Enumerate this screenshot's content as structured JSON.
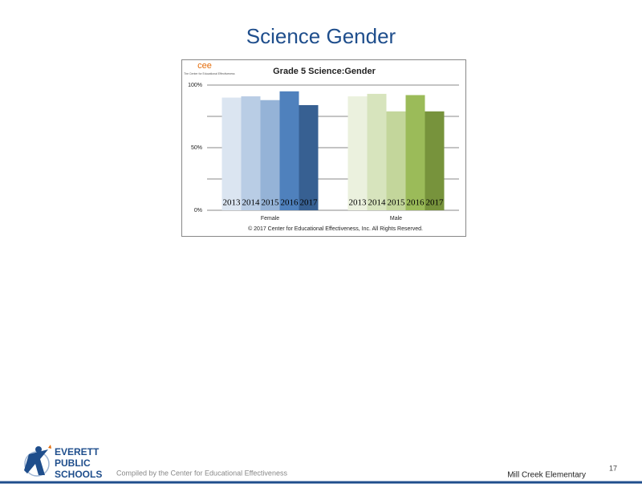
{
  "slide_title": "Science Gender",
  "chart_data": {
    "type": "bar",
    "title": "Grade 5 Science:Gender",
    "categories": [
      "Female",
      "Male"
    ],
    "series": [
      {
        "name": "2013",
        "colors": [
          "#dbe5f1",
          "#ebf1de"
        ],
        "values": [
          90,
          91
        ]
      },
      {
        "name": "2014",
        "colors": [
          "#b9cde5",
          "#d7e4bd"
        ],
        "values": [
          91,
          93
        ]
      },
      {
        "name": "2015",
        "colors": [
          "#95b3d7",
          "#c3d69b"
        ],
        "values": [
          88,
          79
        ]
      },
      {
        "name": "2016",
        "colors": [
          "#4f81bd",
          "#9bbb59"
        ],
        "values": [
          95,
          92
        ]
      },
      {
        "name": "2017",
        "colors": [
          "#376092",
          "#77933c"
        ],
        "values": [
          84,
          79
        ]
      }
    ],
    "ylim": [
      0,
      100
    ],
    "yticks": [
      {
        "value": 0,
        "label": "0%"
      },
      {
        "value": 50,
        "label": "50%"
      },
      {
        "value": 100,
        "label": "100%"
      }
    ],
    "minor_yticks": [
      25,
      75
    ],
    "grid": true,
    "copyright": "© 2017 Center for Educational Effectiveness, Inc. All Rights Reserved.",
    "logo_text": "cee",
    "logo_caption": "The Center for Educational Effectiveness"
  },
  "footer": {
    "compiled": "Compiled by the Center for Educational Effectiveness",
    "school": "Mill Creek Elementary",
    "page": "17",
    "logo": [
      "EVERETT",
      "PUBLIC",
      "SCHOOLS"
    ]
  }
}
